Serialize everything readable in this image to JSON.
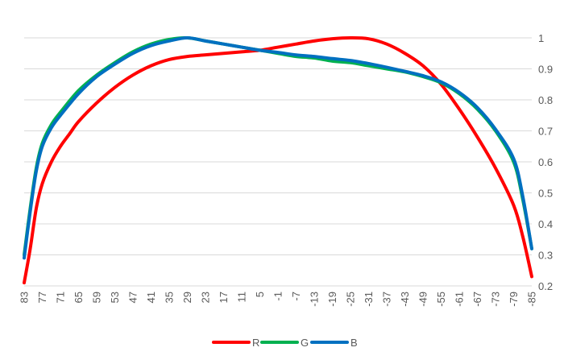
{
  "chart_data": {
    "type": "line",
    "title": "",
    "xlabel": "",
    "ylabel": "",
    "ylim": [
      0.2,
      1
    ],
    "yticks": [
      "0.2",
      "0.3",
      "0.4",
      "0.5",
      "0.6",
      "0.7",
      "0.8",
      "0.9",
      "1"
    ],
    "y_axis_position": "right",
    "x_reversed": true,
    "xlim": [
      85,
      -85
    ],
    "xticks": [
      "83",
      "77",
      "71",
      "65",
      "59",
      "53",
      "47",
      "41",
      "35",
      "29",
      "23",
      "17",
      "11",
      "5",
      "-1",
      "-7",
      "-13",
      "-19",
      "-25",
      "-31",
      "-37",
      "-43",
      "-49",
      "-55",
      "-61",
      "-67",
      "-73",
      "-79",
      "-85"
    ],
    "grid": true,
    "legend_position": "bottom",
    "series": [
      {
        "name": "R",
        "color": "#ff0000",
        "points": [
          [
            83,
            0.21
          ],
          [
            81,
            0.32
          ],
          [
            79,
            0.45
          ],
          [
            77,
            0.53
          ],
          [
            74,
            0.6
          ],
          [
            71,
            0.65
          ],
          [
            68,
            0.69
          ],
          [
            65,
            0.73
          ],
          [
            59,
            0.79
          ],
          [
            53,
            0.84
          ],
          [
            47,
            0.88
          ],
          [
            41,
            0.91
          ],
          [
            35,
            0.93
          ],
          [
            29,
            0.94
          ],
          [
            23,
            0.945
          ],
          [
            17,
            0.95
          ],
          [
            11,
            0.955
          ],
          [
            5,
            0.96
          ],
          [
            -1,
            0.97
          ],
          [
            -7,
            0.98
          ],
          [
            -13,
            0.99
          ],
          [
            -19,
            0.997
          ],
          [
            -25,
            1.0
          ],
          [
            -31,
            0.997
          ],
          [
            -37,
            0.98
          ],
          [
            -43,
            0.95
          ],
          [
            -49,
            0.91
          ],
          [
            -55,
            0.85
          ],
          [
            -61,
            0.77
          ],
          [
            -67,
            0.68
          ],
          [
            -73,
            0.58
          ],
          [
            -79,
            0.46
          ],
          [
            -82,
            0.36
          ],
          [
            -85,
            0.23
          ]
        ]
      },
      {
        "name": "G",
        "color": "#00b050",
        "points": [
          [
            83,
            0.3
          ],
          [
            81,
            0.45
          ],
          [
            79,
            0.58
          ],
          [
            77,
            0.66
          ],
          [
            74,
            0.72
          ],
          [
            71,
            0.76
          ],
          [
            65,
            0.83
          ],
          [
            59,
            0.88
          ],
          [
            53,
            0.92
          ],
          [
            47,
            0.955
          ],
          [
            41,
            0.98
          ],
          [
            35,
            0.995
          ],
          [
            29,
            1.0
          ],
          [
            23,
            0.99
          ],
          [
            17,
            0.98
          ],
          [
            11,
            0.97
          ],
          [
            5,
            0.96
          ],
          [
            -1,
            0.95
          ],
          [
            -7,
            0.94
          ],
          [
            -13,
            0.935
          ],
          [
            -19,
            0.925
          ],
          [
            -25,
            0.92
          ],
          [
            -31,
            0.91
          ],
          [
            -37,
            0.9
          ],
          [
            -43,
            0.89
          ],
          [
            -49,
            0.875
          ],
          [
            -55,
            0.855
          ],
          [
            -61,
            0.82
          ],
          [
            -67,
            0.77
          ],
          [
            -73,
            0.7
          ],
          [
            -79,
            0.6
          ],
          [
            -82,
            0.48
          ],
          [
            -85,
            0.32
          ]
        ]
      },
      {
        "name": "B",
        "color": "#0070c0",
        "points": [
          [
            83,
            0.29
          ],
          [
            81,
            0.44
          ],
          [
            79,
            0.57
          ],
          [
            77,
            0.65
          ],
          [
            74,
            0.71
          ],
          [
            71,
            0.75
          ],
          [
            65,
            0.82
          ],
          [
            59,
            0.875
          ],
          [
            53,
            0.915
          ],
          [
            47,
            0.95
          ],
          [
            41,
            0.975
          ],
          [
            35,
            0.99
          ],
          [
            29,
            1.0
          ],
          [
            23,
            0.99
          ],
          [
            17,
            0.98
          ],
          [
            11,
            0.97
          ],
          [
            5,
            0.96
          ],
          [
            -1,
            0.953
          ],
          [
            -7,
            0.945
          ],
          [
            -13,
            0.94
          ],
          [
            -19,
            0.933
          ],
          [
            -25,
            0.927
          ],
          [
            -31,
            0.917
          ],
          [
            -37,
            0.905
          ],
          [
            -43,
            0.892
          ],
          [
            -49,
            0.878
          ],
          [
            -55,
            0.858
          ],
          [
            -61,
            0.824
          ],
          [
            -67,
            0.775
          ],
          [
            -73,
            0.705
          ],
          [
            -79,
            0.61
          ],
          [
            -82,
            0.49
          ],
          [
            -85,
            0.32
          ]
        ]
      }
    ]
  }
}
